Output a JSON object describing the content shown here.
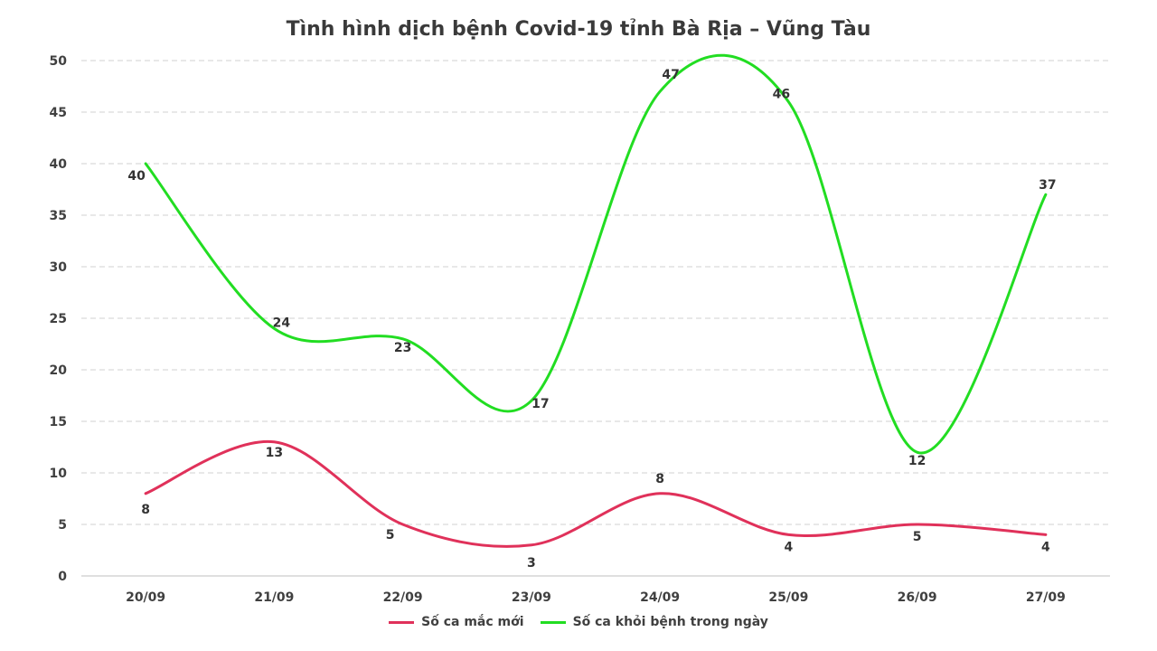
{
  "chart_data": {
    "type": "line",
    "title": "Tình hình dịch bệnh Covid-19 tỉnh Bà Rịa – Vũng Tàu",
    "categories": [
      "20/09",
      "21/09",
      "22/09",
      "23/09",
      "24/09",
      "25/09",
      "26/09",
      "27/09"
    ],
    "ylim": [
      0,
      50
    ],
    "yticks": [
      0,
      5,
      10,
      15,
      20,
      25,
      30,
      35,
      40,
      45,
      50
    ],
    "grid": true,
    "legend_position": "bottom",
    "smooth": true,
    "series": [
      {
        "name": "Số ca mắc mới",
        "color": "#e0315a",
        "values": [
          8,
          13,
          5,
          3,
          8,
          4,
          5,
          4
        ]
      },
      {
        "name": "Số ca khỏi bệnh trong ngày",
        "color": "#22dd22",
        "values": [
          40,
          24,
          23,
          17,
          47,
          46,
          12,
          37
        ]
      }
    ]
  }
}
